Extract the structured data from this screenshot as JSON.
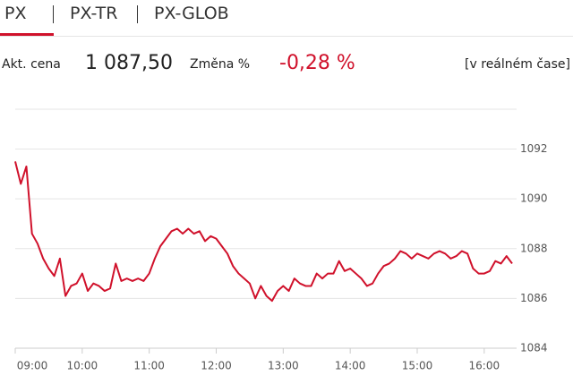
{
  "tabs": [
    "PX",
    "PX-TR",
    "PX-GLOB"
  ],
  "quote": {
    "price_label": "Akt. cena",
    "price": "1 087,50",
    "change_label": "Změna %",
    "change": "-0,28 %",
    "mode": "[v reálném čase]"
  },
  "chart_data": {
    "type": "line",
    "x": [
      540,
      545,
      550,
      555,
      560,
      565,
      570,
      575,
      580,
      585,
      590,
      595,
      600,
      605,
      610,
      615,
      620,
      625,
      630,
      635,
      640,
      645,
      650,
      655,
      660,
      665,
      670,
      675,
      680,
      685,
      690,
      695,
      700,
      705,
      710,
      715,
      720,
      725,
      730,
      735,
      740,
      745,
      750,
      755,
      760,
      765,
      770,
      775,
      780,
      785,
      790,
      795,
      800,
      805,
      810,
      815,
      820,
      825,
      830,
      835,
      840,
      845,
      850,
      855,
      860,
      865,
      870,
      875,
      880,
      885,
      890,
      895,
      900,
      905,
      910,
      915,
      920,
      925,
      930,
      935,
      940,
      945,
      950,
      955,
      960,
      965,
      970,
      975,
      980,
      985
    ],
    "series": [
      {
        "color": "#d0112b",
        "values": [
          1091.5,
          1090.6,
          1091.3,
          1088.6,
          1088.2,
          1087.6,
          1087.2,
          1086.9,
          1087.6,
          1086.1,
          1086.5,
          1086.6,
          1087.0,
          1086.3,
          1086.6,
          1086.5,
          1086.3,
          1086.4,
          1087.4,
          1086.7,
          1086.8,
          1086.7,
          1086.8,
          1086.7,
          1087.0,
          1087.6,
          1088.1,
          1088.4,
          1088.7,
          1088.8,
          1088.6,
          1088.8,
          1088.6,
          1088.7,
          1088.3,
          1088.5,
          1088.4,
          1088.1,
          1087.8,
          1087.3,
          1087.0,
          1086.8,
          1086.6,
          1086.0,
          1086.5,
          1086.1,
          1085.9,
          1086.3,
          1086.5,
          1086.3,
          1086.8,
          1086.6,
          1086.5,
          1086.5,
          1087.0,
          1086.8,
          1087.0,
          1087.0,
          1087.5,
          1087.1,
          1087.2,
          1087.0,
          1086.8,
          1086.5,
          1086.6,
          1087.0,
          1087.3,
          1087.4,
          1087.6,
          1087.9,
          1087.8,
          1087.6,
          1087.8,
          1087.7,
          1087.6,
          1087.8,
          1087.9,
          1087.8,
          1087.6,
          1087.7,
          1087.9,
          1087.8,
          1087.2,
          1087.0,
          1087.0,
          1087.1,
          1087.5,
          1087.4,
          1087.7,
          1087.4
        ]
      }
    ],
    "xlim": [
      540,
      989
    ],
    "xticks": [
      {
        "value": 540,
        "label": "09:00"
      },
      {
        "value": 600,
        "label": "10:00"
      },
      {
        "value": 660,
        "label": "11:00"
      },
      {
        "value": 720,
        "label": "12:00"
      },
      {
        "value": 780,
        "label": "13:00"
      },
      {
        "value": 840,
        "label": "14:00"
      },
      {
        "value": 900,
        "label": "15:00"
      },
      {
        "value": 960,
        "label": "16:00"
      }
    ],
    "ylim": [
      1084,
      1093.6
    ],
    "yticks": [
      1084,
      1086,
      1088,
      1090,
      1092
    ],
    "grid": true
  }
}
